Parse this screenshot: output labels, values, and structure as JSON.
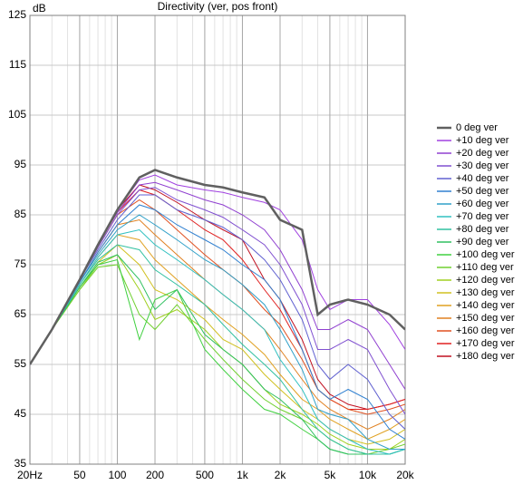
{
  "chart_data": {
    "type": "line",
    "title": "Directivity (ver, pos front)",
    "y_label": "dB",
    "x": [
      20,
      30,
      50,
      70,
      100,
      150,
      200,
      300,
      500,
      700,
      1000,
      1500,
      2000,
      3000,
      4000,
      5000,
      7000,
      10000,
      15000,
      20000
    ],
    "xlim": [
      20,
      20000
    ],
    "ylim": [
      35,
      125
    ],
    "log_x": true,
    "grid": true,
    "legend": "right",
    "xticks": [
      {
        "value": 20,
        "label": "20Hz"
      },
      50,
      100,
      200,
      500,
      {
        "value": 1000,
        "label": "1k"
      },
      {
        "value": 2000,
        "label": "2k"
      },
      {
        "value": 5000,
        "label": "5k"
      },
      {
        "value": 10000,
        "label": "10k"
      },
      {
        "value": 20000,
        "label": "20k"
      }
    ],
    "yticks": [
      35,
      45,
      55,
      65,
      75,
      85,
      95,
      105,
      115,
      125
    ],
    "series": [
      {
        "name": "0 deg ver",
        "color": "#606060",
        "values": [
          55,
          62,
          72,
          79,
          86,
          92.5,
          94,
          92.5,
          91,
          90.5,
          89.5,
          88.5,
          84,
          82,
          65,
          67,
          68,
          67,
          65,
          62
        ]
      },
      {
        "name": "+10 deg ver",
        "color": "#a040e0",
        "values": [
          55,
          62,
          72,
          79,
          86,
          92,
          93,
          91,
          90,
          89.5,
          88.5,
          87.5,
          86,
          80,
          70,
          66,
          68,
          68,
          63,
          58
        ]
      },
      {
        "name": "+20 deg ver",
        "color": "#9040d0",
        "values": [
          55,
          62,
          72,
          79,
          85.5,
          91,
          91.5,
          90,
          88,
          87,
          85,
          82,
          78,
          70,
          62,
          62,
          64,
          62,
          55,
          50
        ]
      },
      {
        "name": "+30 deg ver",
        "color": "#8050d0",
        "values": [
          55,
          62,
          72,
          78.5,
          85,
          90,
          90.5,
          88,
          86,
          84.5,
          82,
          79,
          75,
          67,
          58,
          58,
          60,
          58,
          50,
          45
        ]
      },
      {
        "name": "+40 deg ver",
        "color": "#6060d0",
        "values": [
          55,
          62,
          72,
          78,
          84,
          89,
          89,
          86,
          84,
          82.5,
          80,
          76,
          72,
          64,
          55,
          52,
          55,
          52,
          45,
          42
        ]
      },
      {
        "name": "+50 deg ver",
        "color": "#3080d0",
        "values": [
          55,
          62,
          71.5,
          77.5,
          83,
          87,
          86,
          83,
          80,
          78,
          75,
          72,
          68,
          58,
          50,
          48,
          50,
          48,
          42,
          40
        ]
      },
      {
        "name": "+60 deg ver",
        "color": "#30a0c8",
        "values": [
          55,
          62,
          71.5,
          77,
          82,
          85,
          83,
          80,
          76,
          74,
          71,
          67,
          62,
          54,
          46,
          45,
          44,
          40,
          38,
          38
        ]
      },
      {
        "name": "+70 deg ver",
        "color": "#30c0c0",
        "values": [
          55,
          62,
          71,
          76.5,
          81,
          82,
          79,
          76,
          72,
          69,
          66,
          62,
          56,
          50,
          44,
          42,
          40,
          38,
          37,
          38
        ]
      },
      {
        "name": "+80 deg ver",
        "color": "#30c0a0",
        "values": [
          55,
          62,
          71,
          76,
          79,
          78,
          74,
          71,
          67,
          63,
          59,
          55,
          52,
          46,
          42,
          40,
          38,
          37,
          37,
          38
        ]
      },
      {
        "name": "+90 deg ver",
        "color": "#30c060",
        "values": [
          55,
          62,
          70.5,
          75.5,
          77,
          72,
          66,
          70,
          61,
          58,
          55,
          50,
          48,
          44,
          40,
          38,
          37,
          37,
          37,
          38
        ]
      },
      {
        "name": "+100 deg ver",
        "color": "#40d040",
        "values": [
          55,
          62,
          70.5,
          75,
          76,
          60,
          68,
          70,
          58,
          54,
          50,
          46,
          45,
          42,
          40,
          38,
          37,
          37,
          37,
          38
        ]
      },
      {
        "name": "+110 deg ver",
        "color": "#70d030",
        "values": [
          55,
          62,
          70,
          74.5,
          75,
          65,
          62,
          67,
          60,
          56,
          52,
          48,
          46,
          44,
          42,
          40,
          38,
          37,
          38,
          39
        ]
      },
      {
        "name": "+120 deg ver",
        "color": "#a0d020",
        "values": [
          55,
          62,
          70,
          75,
          77,
          70,
          64,
          66,
          62,
          58,
          55,
          50,
          47,
          45,
          43,
          41,
          39,
          38,
          38,
          40
        ]
      },
      {
        "name": "+130 deg ver",
        "color": "#d0c020",
        "values": [
          55,
          62,
          70.5,
          75.5,
          79,
          75,
          70,
          68,
          64,
          60,
          58,
          53,
          50,
          46,
          44,
          42,
          40,
          39,
          40,
          42
        ]
      },
      {
        "name": "+140 deg ver",
        "color": "#e0a020",
        "values": [
          55,
          62,
          71,
          76.5,
          81,
          80,
          76,
          72,
          67,
          64,
          61,
          57,
          53,
          48,
          46,
          44,
          42,
          40,
          42,
          44
        ]
      },
      {
        "name": "+150 deg ver",
        "color": "#e08020",
        "values": [
          55,
          62,
          71.5,
          77.5,
          83,
          84,
          81,
          77,
          72,
          69,
          66,
          62,
          58,
          52,
          48,
          46,
          44,
          42,
          44,
          46
        ]
      },
      {
        "name": "+160 deg ver",
        "color": "#e05020",
        "values": [
          55,
          62,
          72,
          78.5,
          85,
          88,
          86,
          82,
          77,
          74,
          71,
          66,
          63,
          56,
          50,
          48,
          46,
          45,
          46,
          47
        ]
      },
      {
        "name": "+170 deg ver",
        "color": "#e02020",
        "values": [
          55,
          62,
          72,
          79,
          85.5,
          90,
          89,
          86,
          82,
          80,
          76,
          70,
          66,
          58,
          50,
          48,
          46,
          46,
          47,
          48
        ]
      },
      {
        "name": "+180 deg ver",
        "color": "#c01020",
        "values": [
          55,
          62,
          72,
          79,
          86,
          91,
          90,
          87.5,
          84,
          82,
          80,
          72,
          68,
          60,
          52,
          49,
          47,
          46,
          47,
          48
        ]
      }
    ]
  }
}
